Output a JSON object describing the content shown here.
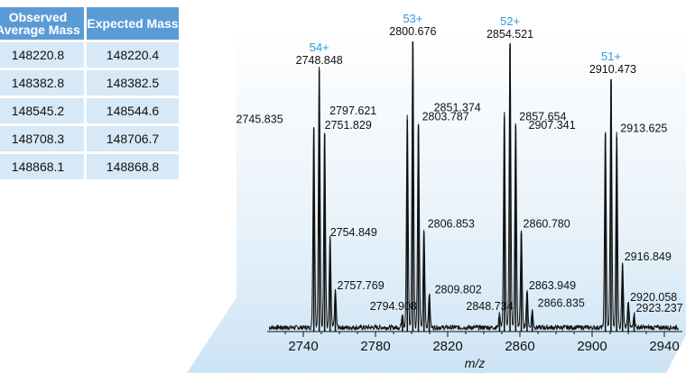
{
  "colors": {
    "table_header": "#5b9bd5",
    "table_cell": "#d7e8f6",
    "panel_gradient_top": "#ffffff",
    "panel_gradient_bottom": "#cde4f5",
    "charge_label": "#2e9ad6",
    "trace": "#111111"
  },
  "table": {
    "headers": [
      "Observed Average Mass",
      "Expected Mass"
    ],
    "rows": [
      [
        "148220.8",
        "148220.4"
      ],
      [
        "148382.8",
        "148382.5"
      ],
      [
        "148545.2",
        "148544.6"
      ],
      [
        "148708.3",
        "148706.7"
      ],
      [
        "148868.1",
        "148868.8"
      ]
    ]
  },
  "chart_data": {
    "type": "line",
    "xlabel": "m/z",
    "ylabel": "",
    "xlim": [
      2720,
      2950
    ],
    "ylim": [
      0,
      100
    ],
    "xticks": [
      2740,
      2780,
      2820,
      2860,
      2900,
      2940
    ],
    "grid": false,
    "charge_states": [
      {
        "label": "54+",
        "x": 2748.848
      },
      {
        "label": "53+",
        "x": 2800.676
      },
      {
        "label": "52+",
        "x": 2854.521
      },
      {
        "label": "51+",
        "x": 2910.473
      }
    ],
    "peaks": [
      {
        "x": 2745.835,
        "y": 70,
        "label": "2745.835"
      },
      {
        "x": 2748.848,
        "y": 90,
        "label": "2748.848"
      },
      {
        "x": 2751.829,
        "y": 68,
        "label": "2751.829"
      },
      {
        "x": 2754.849,
        "y": 31,
        "label": "2754.849"
      },
      {
        "x": 2757.769,
        "y": 13,
        "label": "2757.769"
      },
      {
        "x": 2794.908,
        "y": 5,
        "label": "2794.908"
      },
      {
        "x": 2797.621,
        "y": 73,
        "label": "2797.621"
      },
      {
        "x": 2800.676,
        "y": 100,
        "label": "2800.676"
      },
      {
        "x": 2803.787,
        "y": 71,
        "label": "2803.787"
      },
      {
        "x": 2806.853,
        "y": 34,
        "label": "2806.853"
      },
      {
        "x": 2809.802,
        "y": 12,
        "label": "2809.802"
      },
      {
        "x": 2848.734,
        "y": 5,
        "label": "2848.734"
      },
      {
        "x": 2851.374,
        "y": 74,
        "label": "2851.374"
      },
      {
        "x": 2854.521,
        "y": 99,
        "label": "2854.521"
      },
      {
        "x": 2857.654,
        "y": 71,
        "label": "2857.654"
      },
      {
        "x": 2860.78,
        "y": 34,
        "label": "2860.780"
      },
      {
        "x": 2863.949,
        "y": 13,
        "label": "2863.949"
      },
      {
        "x": 2866.835,
        "y": 6,
        "label": "2866.835"
      },
      {
        "x": 2907.341,
        "y": 68,
        "label": "2907.341"
      },
      {
        "x": 2910.473,
        "y": 87,
        "label": "2910.473"
      },
      {
        "x": 2913.625,
        "y": 67,
        "label": "2913.625"
      },
      {
        "x": 2916.849,
        "y": 23,
        "label": "2916.849"
      },
      {
        "x": 2920.058,
        "y": 9,
        "label": "2920.058"
      },
      {
        "x": 2923.237,
        "y": 5,
        "label": "2923.237"
      }
    ]
  }
}
